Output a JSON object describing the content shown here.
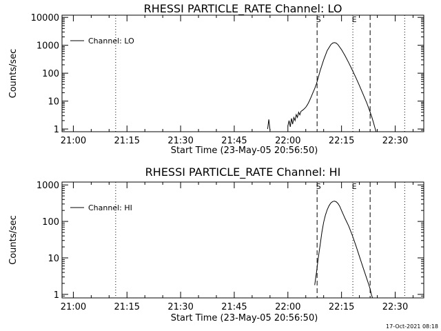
{
  "chart_data": [
    {
      "type": "line",
      "title": "RHESSI PARTICLE_RATE Channel: LO",
      "xlabel": "Start Time (23-May-05 20:56:50)",
      "ylabel": "Counts/sec",
      "y_scale": "log",
      "ylim": [
        0.8,
        12000
      ],
      "y_ticks": [
        1,
        10,
        100,
        1000,
        10000
      ],
      "y_tick_labels": [
        "1",
        "10",
        "100",
        "1000",
        "10000"
      ],
      "xlim": [
        "20:56:50",
        "22:38:00"
      ],
      "x_tick_labels": [
        "21:00",
        "21:15",
        "21:30",
        "21:45",
        "22:00",
        "22:15",
        "22:30"
      ],
      "legend": {
        "position": "top-left",
        "entries": [
          "Channel: LO"
        ]
      },
      "series": [
        {
          "name": "Channel: LO",
          "x": [
            "21:54:20",
            "21:54:40",
            "21:55:00",
            "21:55:20",
            "22:00:00",
            "22:00:20",
            "22:00:40",
            "22:01:00",
            "22:01:20",
            "22:01:40",
            "22:02:00",
            "22:02:20",
            "22:02:40",
            "22:03:00",
            "22:03:20",
            "22:03:40",
            "22:04:00",
            "22:04:30",
            "22:05:00",
            "22:05:30",
            "22:06:00",
            "22:06:30",
            "22:07:00",
            "22:07:30",
            "22:08:00",
            "22:08:30",
            "22:09:00",
            "22:10:00",
            "22:11:00",
            "22:12:00",
            "22:12:30",
            "22:13:00",
            "22:13:30",
            "22:14:00",
            "22:15:00",
            "22:16:00",
            "22:17:00",
            "22:18:00",
            "22:19:00",
            "22:20:00",
            "22:21:00",
            "22:22:00",
            "22:22:30",
            "22:23:00",
            "22:23:30",
            "22:24:00",
            "22:24:20",
            "22:24:40"
          ],
          "y": [
            1,
            2.2,
            0.9,
            null,
            1.3,
            2,
            1.2,
            2.4,
            1.5,
            2.6,
            2,
            3.3,
            2.6,
            4,
            3.2,
            4.3,
            4.6,
            5.2,
            6,
            7.5,
            10,
            14,
            20,
            28,
            42,
            70,
            120,
            300,
            650,
            1050,
            1200,
            1250,
            1200,
            1050,
            700,
            420,
            240,
            130,
            70,
            36,
            18,
            9,
            6,
            4,
            2.6,
            1.6,
            1.1,
            0.8
          ]
        }
      ],
      "markers": [
        {
          "label": "S",
          "time": "22:08:10",
          "line": "dashed"
        },
        {
          "label": "E",
          "time": "22:18:10",
          "line": "dotted"
        },
        {
          "label": "",
          "time": "22:23:00",
          "line": "dashed"
        },
        {
          "label": "",
          "time": "21:11:50",
          "line": "dotted"
        },
        {
          "label": "",
          "time": "22:32:40",
          "line": "dotted"
        }
      ]
    },
    {
      "type": "line",
      "title": "RHESSI PARTICLE_RATE Channel: HI",
      "xlabel": "Start Time (23-May-05 20:56:50)",
      "ylabel": "Counts/sec",
      "y_scale": "log",
      "ylim": [
        0.8,
        1200
      ],
      "y_ticks": [
        1,
        10,
        100,
        1000
      ],
      "y_tick_labels": [
        "1",
        "10",
        "100",
        "1000"
      ],
      "xlim": [
        "20:56:50",
        "22:38:00"
      ],
      "x_tick_labels": [
        "21:00",
        "21:15",
        "21:30",
        "21:45",
        "22:00",
        "22:15",
        "22:30"
      ],
      "legend": {
        "position": "top-left",
        "entries": [
          "Channel: HI"
        ]
      },
      "series": [
        {
          "name": "Channel: HI",
          "x": [
            "22:07:30",
            "22:08:00",
            "22:08:30",
            "22:09:00",
            "22:09:30",
            "22:10:00",
            "22:10:30",
            "22:11:00",
            "22:11:30",
            "22:12:00",
            "22:12:30",
            "22:13:00",
            "22:13:30",
            "22:14:00",
            "22:14:30",
            "22:15:00",
            "22:16:00",
            "22:17:00",
            "22:18:00",
            "22:19:00",
            "22:20:00",
            "22:21:00",
            "22:22:00",
            "22:22:30",
            "22:23:00",
            "22:23:20",
            "22:23:40"
          ],
          "y": [
            1.8,
            4,
            10,
            22,
            50,
            95,
            150,
            210,
            270,
            320,
            350,
            360,
            345,
            310,
            260,
            200,
            120,
            75,
            42,
            22,
            11,
            5.5,
            2.8,
            2,
            1.4,
            1,
            0.8
          ]
        }
      ],
      "markers": [
        {
          "label": "S",
          "time": "22:08:10",
          "line": "dashed"
        },
        {
          "label": "E",
          "time": "22:18:10",
          "line": "dotted"
        },
        {
          "label": "",
          "time": "22:23:00",
          "line": "dashed"
        },
        {
          "label": "",
          "time": "21:11:50",
          "line": "dotted"
        },
        {
          "label": "",
          "time": "22:32:40",
          "line": "dotted"
        }
      ]
    }
  ],
  "footer_stamp": "17-Oct-2021 08:18"
}
